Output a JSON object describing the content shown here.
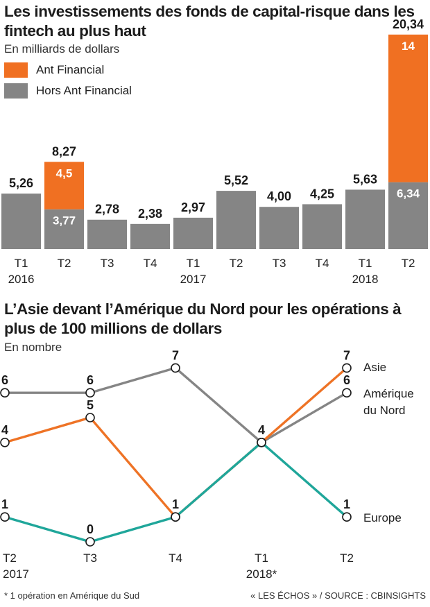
{
  "chart_data": [
    {
      "type": "bar",
      "title": "Les investissements des fonds de capital-risque dans les fintech au plus haut",
      "subtitle": "En milliards de dollars",
      "stacked": true,
      "categories": [
        {
          "quarter": "T1",
          "year": "2016"
        },
        {
          "quarter": "T2",
          "year": ""
        },
        {
          "quarter": "T3",
          "year": ""
        },
        {
          "quarter": "T4",
          "year": ""
        },
        {
          "quarter": "T1",
          "year": "2017"
        },
        {
          "quarter": "T2",
          "year": ""
        },
        {
          "quarter": "T3",
          "year": ""
        },
        {
          "quarter": "T4",
          "year": ""
        },
        {
          "quarter": "T1",
          "year": "2018"
        },
        {
          "quarter": "T2",
          "year": ""
        }
      ],
      "series": [
        {
          "name": "Hors Ant Financial",
          "color": "#858585",
          "values": [
            5.26,
            3.77,
            2.78,
            2.38,
            2.97,
            5.52,
            4.0,
            4.25,
            5.63,
            6.34
          ],
          "labels": [
            "5,26",
            "3,77",
            "2,78",
            "2,38",
            "2,97",
            "5,52",
            "4,00",
            "4,25",
            "5,63",
            "6,34"
          ]
        },
        {
          "name": "Ant Financial",
          "color": "#f07022",
          "values": [
            0,
            4.5,
            0,
            0,
            0,
            0,
            0,
            0,
            0,
            14
          ],
          "labels": [
            "",
            "4,5",
            "",
            "",
            "",
            "",
            "",
            "",
            "",
            "14"
          ]
        }
      ],
      "totals": [
        "5,26",
        "8,27",
        "2,78",
        "2,38",
        "2,97",
        "5,52",
        "4,00",
        "4,25",
        "5,63",
        "20,34"
      ],
      "legend": [
        {
          "label": "Ant Financial",
          "color": "#f07022"
        },
        {
          "label": "Hors Ant Financial",
          "color": "#858585"
        }
      ],
      "legend_position": "top-left",
      "ylim": [
        0,
        21.5
      ]
    },
    {
      "type": "line",
      "title": "L’Asie devant l’Amérique du Nord pour les opérations à plus de 100 millions de dollars",
      "subtitle": "En nombre",
      "categories": [
        {
          "quarter": "T2",
          "year": "2017"
        },
        {
          "quarter": "T3",
          "year": ""
        },
        {
          "quarter": "T4",
          "year": ""
        },
        {
          "quarter": "T1",
          "year": "2018*"
        },
        {
          "quarter": "T2",
          "year": ""
        }
      ],
      "series": [
        {
          "name": "Asie",
          "color": "#ee7326",
          "values": [
            4,
            5,
            1,
            4,
            7
          ]
        },
        {
          "name": "Amérique du Nord",
          "name_lines": [
            "Amérique",
            "du Nord"
          ],
          "color": "#858585",
          "values": [
            6,
            6,
            7,
            4,
            6
          ]
        },
        {
          "name": "Europe",
          "color": "#1fa69a",
          "values": [
            1,
            0,
            1,
            4,
            1
          ]
        }
      ],
      "ylim": [
        0,
        7
      ]
    }
  ],
  "footer": {
    "note": "* 1 opération en Amérique du Sud",
    "source": "« LES ÉCHOS » / SOURCE : CBINSIGHTS"
  }
}
